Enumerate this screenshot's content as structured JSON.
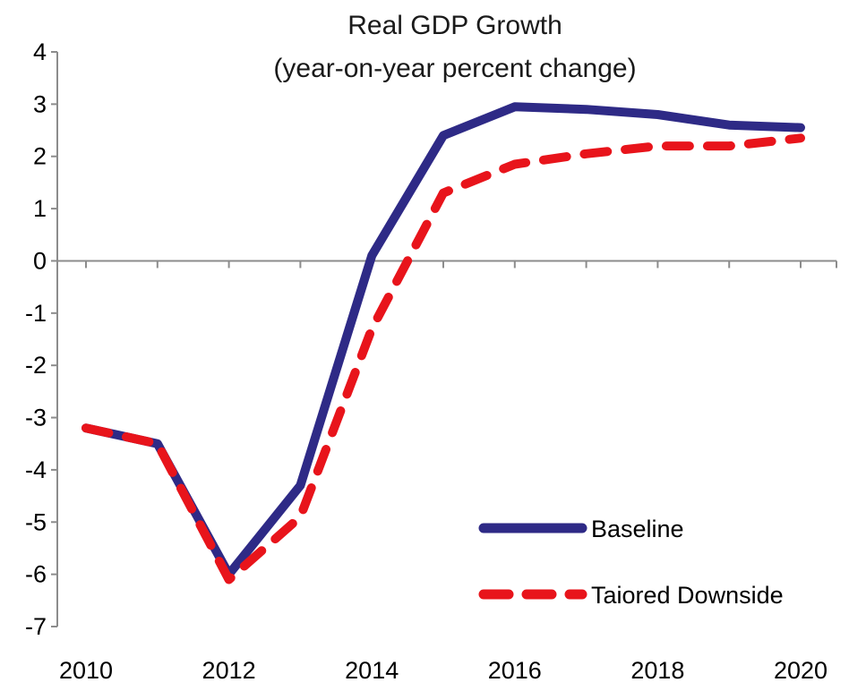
{
  "chart_data": {
    "type": "line",
    "title": "Real GDP Growth",
    "subtitle": "(year-on-year percent change)",
    "xlabel": "",
    "ylabel": "",
    "x": [
      2010,
      2011,
      2012,
      2013,
      2014,
      2015,
      2016,
      2017,
      2018,
      2019,
      2020
    ],
    "x_tick_labels": [
      "2010",
      "2012",
      "2014",
      "2016",
      "2018",
      "2020"
    ],
    "y_tick_labels": [
      "4",
      "3",
      "2",
      "1",
      "0",
      "-1",
      "-2",
      "-3",
      "-4",
      "-5",
      "-6",
      "-7"
    ],
    "xlim": [
      2010,
      2020
    ],
    "ylim": [
      -7,
      4
    ],
    "grid": false,
    "legend_position": "bottom-right",
    "series": [
      {
        "name": "Baseline",
        "color": "#2e2a86",
        "style": "solid",
        "values": [
          -3.2,
          -3.5,
          -6.0,
          -4.3,
          0.1,
          2.4,
          2.95,
          2.9,
          2.8,
          2.6,
          2.55
        ]
      },
      {
        "name": "Taiored Downside",
        "color": "#e8141b",
        "style": "dashed",
        "values": [
          -3.2,
          -3.5,
          -6.1,
          -4.9,
          -1.3,
          1.3,
          1.85,
          2.05,
          2.2,
          2.2,
          2.35
        ]
      }
    ]
  }
}
